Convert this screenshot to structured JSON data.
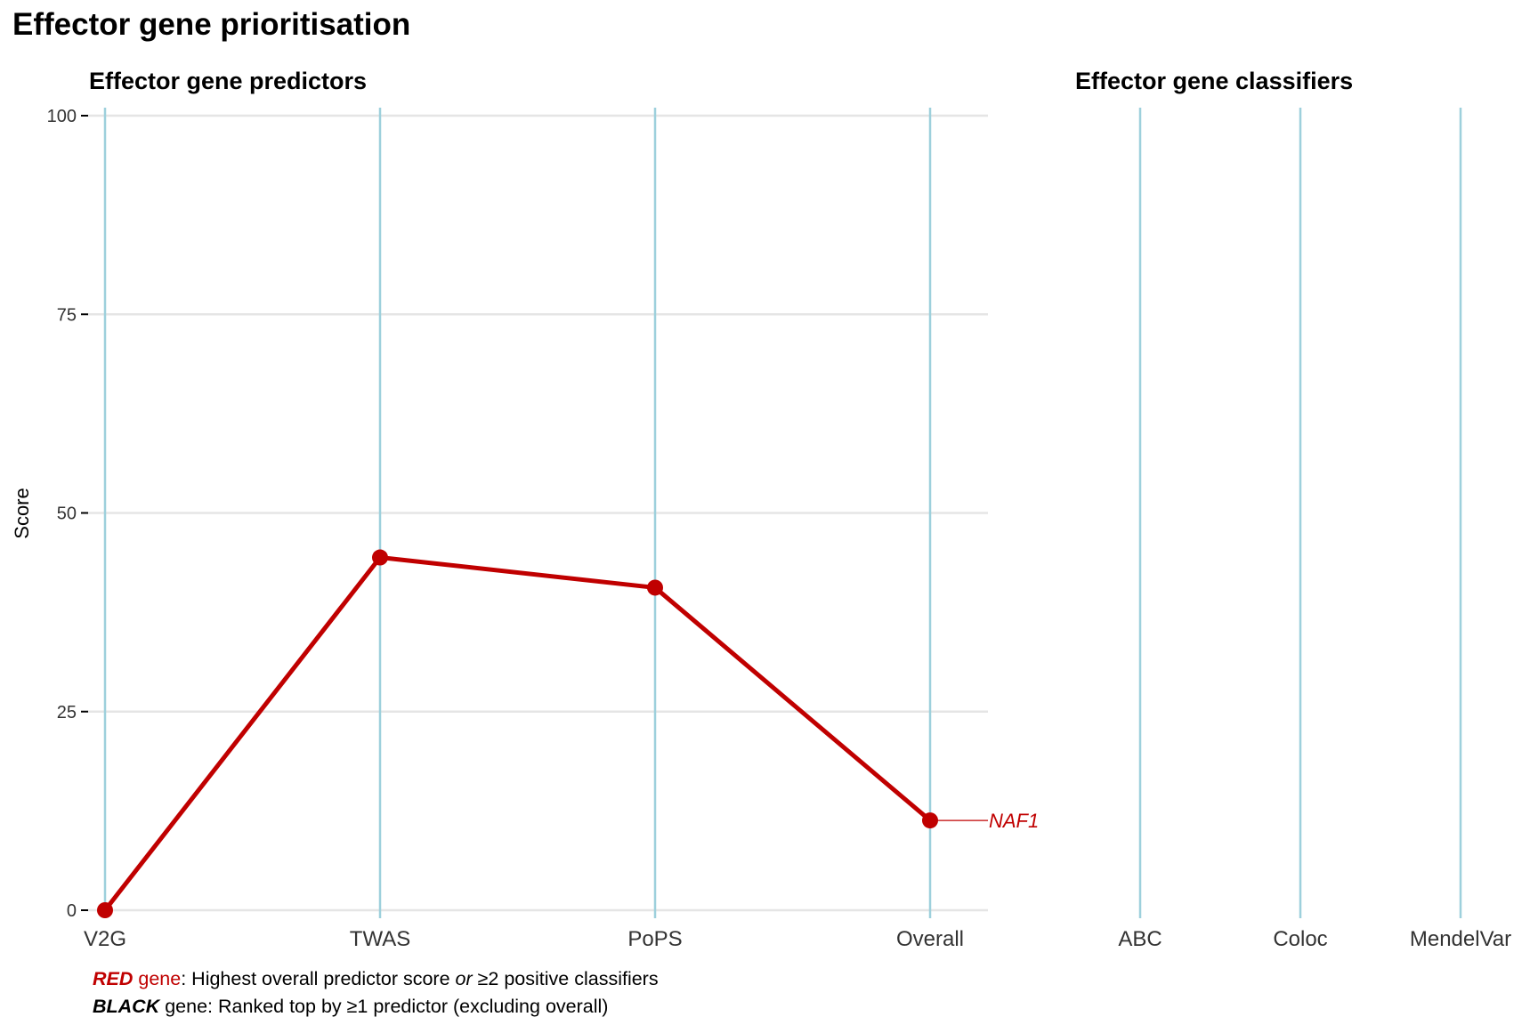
{
  "title": "Effector gene prioritisation",
  "chart_data": [
    {
      "type": "line",
      "title": "Effector gene predictors",
      "xlabel": "",
      "ylabel": "Score",
      "categories": [
        "V2G",
        "TWAS",
        "PoPS",
        "Overall"
      ],
      "ylim": [
        0,
        100
      ],
      "yticks": [
        0,
        25,
        50,
        75,
        100
      ],
      "grid": "horizontal",
      "series": [
        {
          "name": "NAF1",
          "values": [
            0,
            44.4,
            40.6,
            11.3
          ],
          "color": "#c00000",
          "label_italic": true
        }
      ]
    },
    {
      "type": "line",
      "title": "Effector gene classifiers",
      "categories": [
        "ABC",
        "Coloc",
        "MendelVar"
      ],
      "series": []
    }
  ],
  "colors": {
    "red_gene": "#c00000",
    "axis_line": "#9dd0dc",
    "grid": "#e5e5e5"
  },
  "caption": {
    "line1": {
      "gene_word": "RED",
      "gene_suffix": " gene",
      "text_a": ": Highest overall predictor score ",
      "text_or": "or",
      "text_b": " ≥2 positive classifiers"
    },
    "line2": {
      "gene_word": "BLACK",
      "text": " gene: Ranked top by ≥1 predictor (excluding overall)"
    }
  }
}
